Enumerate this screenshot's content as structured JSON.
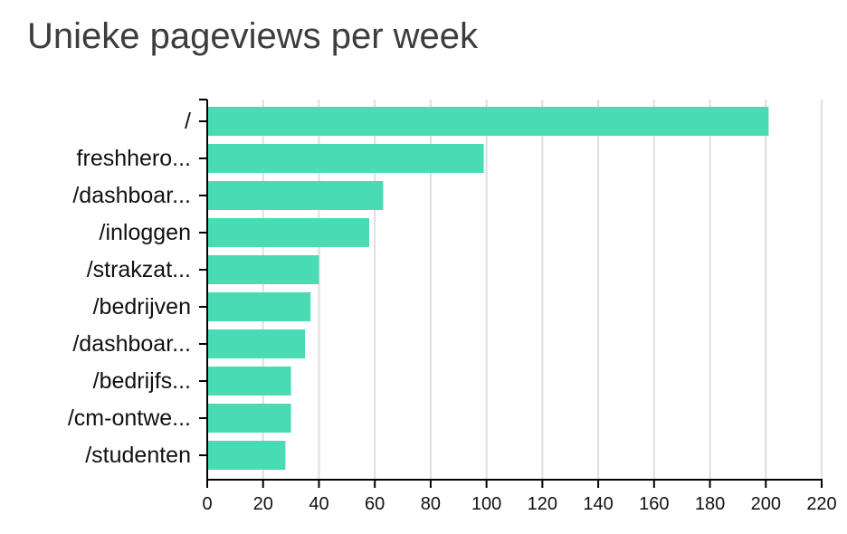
{
  "chart_data": {
    "type": "bar",
    "orientation": "horizontal",
    "title": "Unieke pageviews per week",
    "xlabel": "",
    "ylabel": "",
    "categories": [
      "/",
      "freshhero...",
      "/dashboar...",
      "/inloggen",
      "/strakzat...",
      "/bedrijven",
      "/dashboar...",
      "/bedrijfs...",
      "/cm-ontwe...",
      "/studenten"
    ],
    "values": [
      201,
      99,
      63,
      58,
      40,
      37,
      35,
      30,
      30,
      28
    ],
    "xlim": [
      0,
      220
    ],
    "xticks": [
      0,
      20,
      40,
      60,
      80,
      100,
      120,
      140,
      160,
      180,
      200,
      220
    ],
    "grid": true,
    "legend": "none",
    "bar_color": "#48dbb4",
    "grid_color": "#dedede",
    "axis_color": "#000000"
  }
}
